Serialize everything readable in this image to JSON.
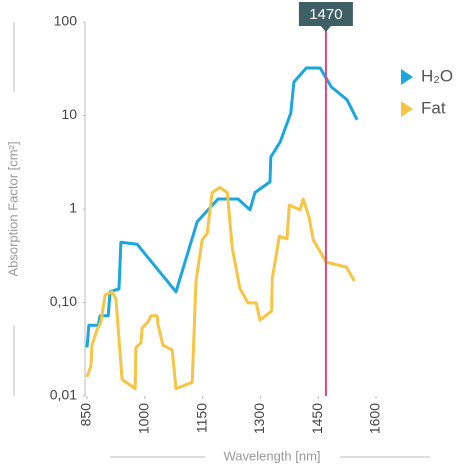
{
  "chart_data": {
    "type": "line",
    "y_label": "Absorption Factor [cm²]",
    "x_label": "Wavelength [nm]",
    "log_y": true,
    "xlim": [
      850,
      1600
    ],
    "ylim": [
      0.01,
      100
    ],
    "xticks": [
      850,
      1000,
      1150,
      1300,
      1450,
      1600
    ],
    "yticks": [
      {
        "value": 0.01,
        "label": "0,01"
      },
      {
        "value": 0.1,
        "label": "0,10"
      },
      1,
      10,
      100
    ],
    "vline": {
      "value": 1470,
      "color": "#e0457b",
      "label_color": "#3f5f66"
    },
    "series": [
      {
        "name": "H₂O",
        "color": "#1aa7e0",
        "x": [
          850,
          855,
          879,
          884,
          905,
          910,
          933,
          938,
          980,
          1081,
          1136,
          1190,
          1242,
          1273,
          1286,
          1325,
          1327,
          1351,
          1379,
          1387,
          1419,
          1455,
          1484,
          1525,
          1551
        ],
        "values": [
          0.033,
          0.057,
          0.057,
          0.072,
          0.072,
          0.13,
          0.14,
          0.44,
          0.42,
          0.13,
          0.73,
          1.28,
          1.28,
          0.98,
          1.5,
          1.95,
          3.6,
          5.2,
          10.6,
          22.8,
          32.2,
          32.2,
          20.2,
          14.7,
          9
        ]
      },
      {
        "name": "Fat",
        "color": "#f7c543",
        "x": [
          850,
          860,
          863,
          876,
          886,
          897,
          915,
          925,
          941,
          975,
          977,
          990,
          993,
          1008,
          1016,
          1032,
          1034,
          1047,
          1071,
          1081,
          1123,
          1133,
          1149,
          1162,
          1175,
          1195,
          1214,
          1227,
          1247,
          1268,
          1289,
          1299,
          1329,
          1331,
          1349,
          1369,
          1375,
          1403,
          1411,
          1427,
          1437,
          1471,
          1523,
          1544
        ],
        "values": [
          0.016,
          0.021,
          0.035,
          0.051,
          0.062,
          0.12,
          0.13,
          0.11,
          0.015,
          0.012,
          0.033,
          0.037,
          0.053,
          0.062,
          0.072,
          0.072,
          0.059,
          0.035,
          0.031,
          0.012,
          0.014,
          0.17,
          0.47,
          0.55,
          1.5,
          1.7,
          1.5,
          0.38,
          0.14,
          0.099,
          0.099,
          0.065,
          0.081,
          0.18,
          0.51,
          0.48,
          1.1,
          0.98,
          1.28,
          0.8,
          0.47,
          0.27,
          0.24,
          0.17
        ]
      }
    ]
  }
}
